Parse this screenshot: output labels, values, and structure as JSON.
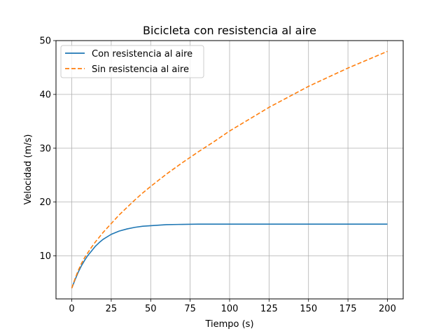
{
  "chart_data": {
    "type": "line",
    "title": "Bicicleta con resistencia al aire",
    "xlabel": "Tiempo (s)",
    "ylabel": "Velocidad (m/s)",
    "xlim": [
      -10,
      210
    ],
    "ylim": [
      2,
      50
    ],
    "xticks": [
      0,
      25,
      50,
      75,
      100,
      125,
      150,
      175,
      200
    ],
    "yticks": [
      10,
      20,
      30,
      40,
      50
    ],
    "grid": true,
    "legend_position": "top-left",
    "series": [
      {
        "name": "Con resistencia al aire",
        "color": "#1f77b4",
        "dash": "solid",
        "x": [
          0,
          2,
          4,
          6,
          8,
          10,
          12.5,
          15,
          17.5,
          20,
          25,
          30,
          35,
          40,
          45,
          50,
          60,
          70,
          80,
          90,
          100,
          125,
          150,
          175,
          200
        ],
        "y": [
          4.0,
          5.5,
          6.9,
          8.1,
          9.1,
          10.0,
          10.9,
          11.8,
          12.5,
          13.1,
          14.0,
          14.6,
          15.0,
          15.3,
          15.5,
          15.6,
          15.8,
          15.85,
          15.9,
          15.9,
          15.9,
          15.9,
          15.9,
          15.9,
          15.9
        ]
      },
      {
        "name": "Sin resistencia al aire",
        "color": "#ff7f0e",
        "dash": "dashed",
        "x": [
          0,
          2,
          4,
          6,
          8,
          10,
          12.5,
          15,
          17.5,
          20,
          25,
          30,
          35,
          40,
          45,
          50,
          60,
          70,
          80,
          90,
          100,
          125,
          150,
          175,
          200
        ],
        "y": [
          4.0,
          5.7,
          7.2,
          8.5,
          9.6,
          10.5,
          11.6,
          12.6,
          13.5,
          14.4,
          16.0,
          17.6,
          19.0,
          20.4,
          21.7,
          22.9,
          25.2,
          27.3,
          29.3,
          31.2,
          33.2,
          37.6,
          41.5,
          44.9,
          48.0
        ]
      }
    ]
  }
}
